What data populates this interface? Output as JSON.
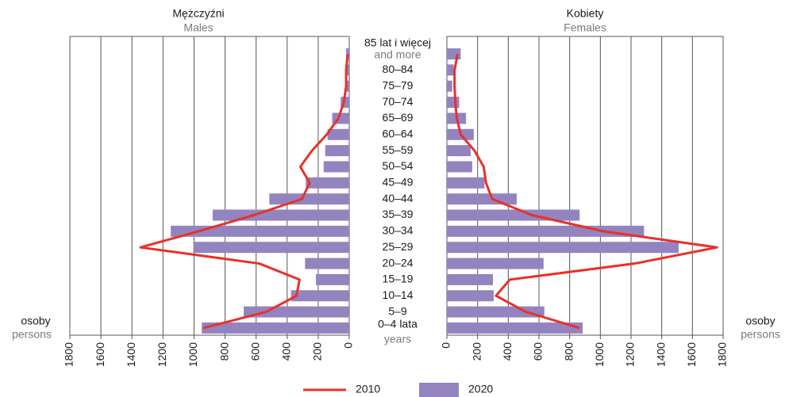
{
  "chart_data": {
    "type": "pyramid",
    "categories": [
      "85 lat i więcej",
      "80–84",
      "75–79",
      "70–74",
      "65–69",
      "60–64",
      "55–59",
      "50–54",
      "45–49",
      "40–44",
      "35–39",
      "30–34",
      "25–29",
      "20–24",
      "15–19",
      "10–14",
      "5–9",
      "0–4 lata"
    ],
    "top_category_note": "and more",
    "bottom_category_note": "years",
    "left_title": "Mężczyźni",
    "left_subtitle": "Males",
    "right_title": "Kobiety",
    "right_subtitle": "Females",
    "axis_label": "osoby",
    "axis_label_en": "persons",
    "xlim": [
      0,
      1800
    ],
    "xticks": [
      0,
      200,
      400,
      600,
      800,
      1000,
      1200,
      1400,
      1600,
      1800
    ],
    "grid": true,
    "series": [
      {
        "name": "2010",
        "color": "#e8312a",
        "style": "line",
        "males": [
          10,
          20,
          20,
          35,
          70,
          145,
          240,
          315,
          255,
          305,
          615,
          970,
          1345,
          580,
          320,
          340,
          535,
          940
        ],
        "females": [
          70,
          50,
          50,
          55,
          65,
          90,
          180,
          240,
          255,
          295,
          555,
          1020,
          1760,
          1225,
          410,
          320,
          515,
          865
        ]
      },
      {
        "name": "2020",
        "color": "#9384c0",
        "style": "bar",
        "males": [
          20,
          25,
          25,
          55,
          110,
          140,
          155,
          165,
          280,
          515,
          880,
          1150,
          1005,
          285,
          215,
          375,
          680,
          950
        ],
        "females": [
          90,
          45,
          35,
          80,
          125,
          175,
          155,
          165,
          245,
          455,
          865,
          1285,
          1510,
          630,
          300,
          305,
          635,
          885
        ]
      }
    ]
  }
}
